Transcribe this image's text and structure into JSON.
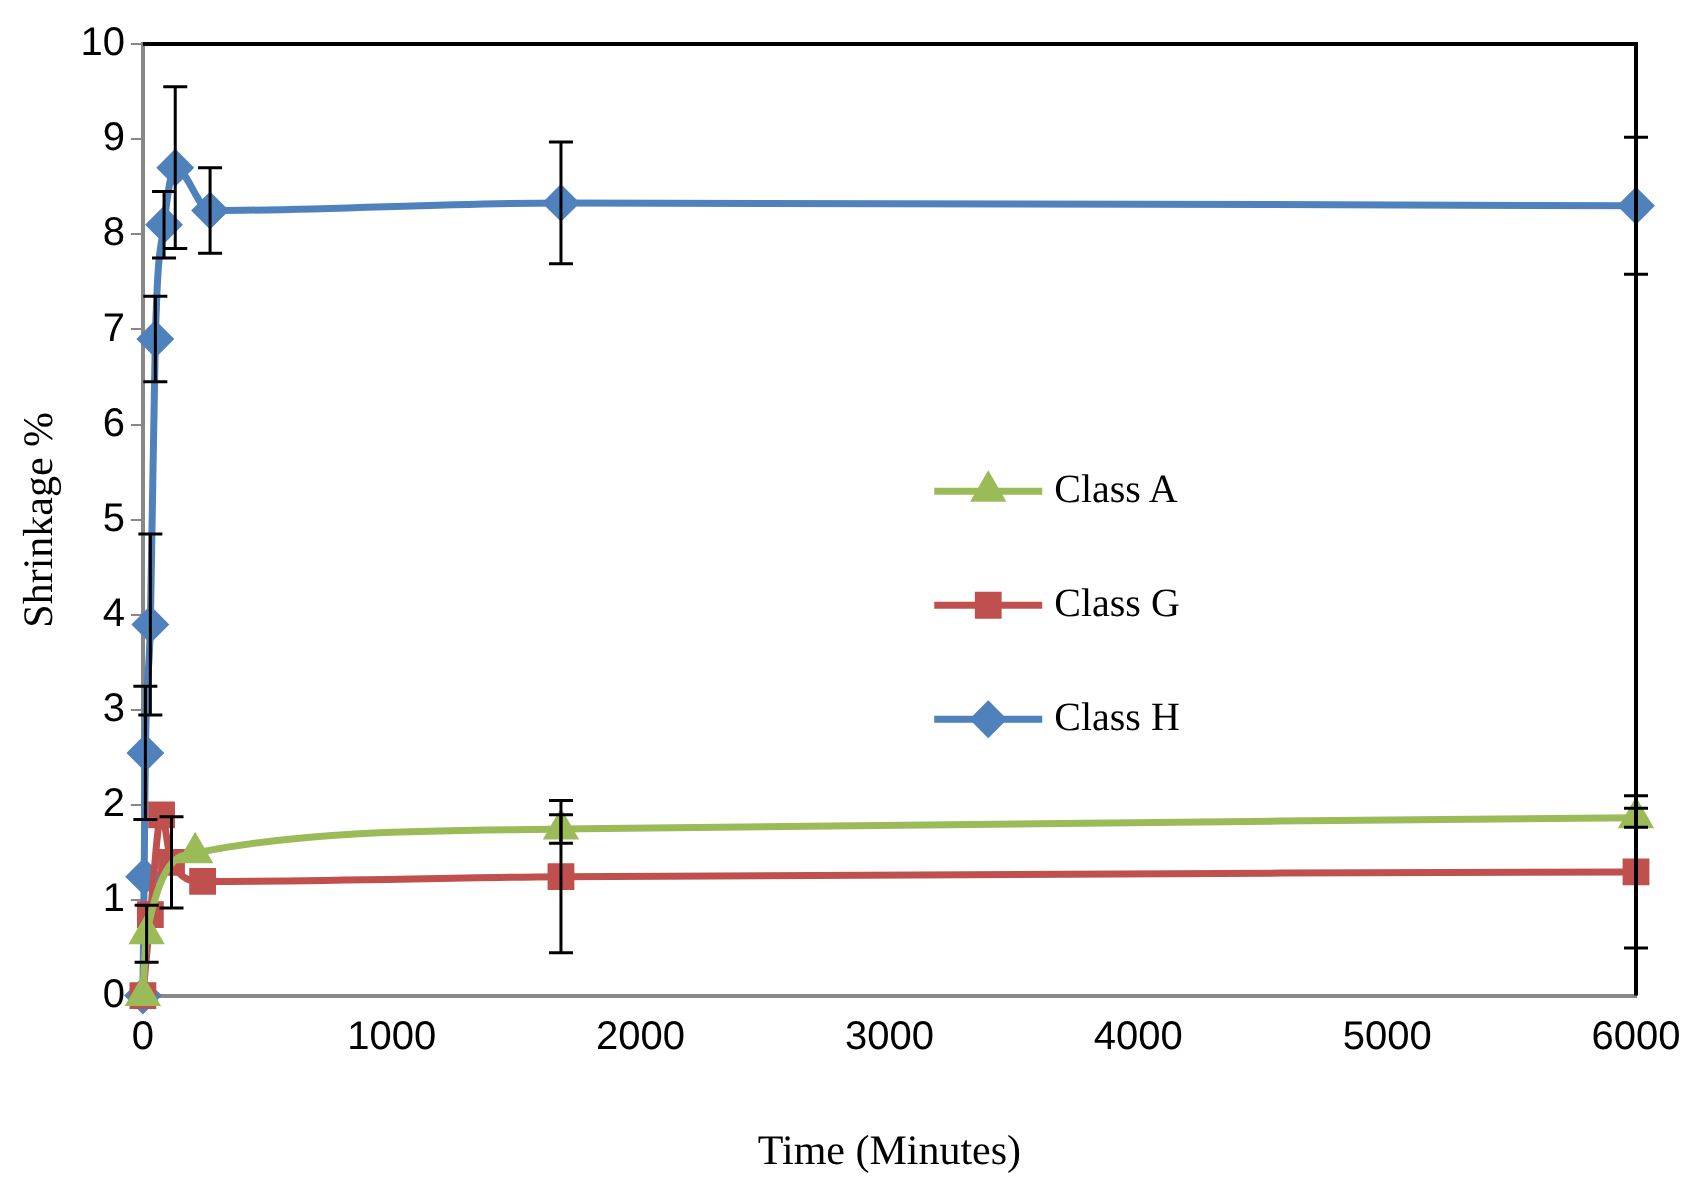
{
  "chart_data": {
    "type": "line",
    "xlabel": "Time (Minutes)",
    "ylabel": "Shrinkage %",
    "xlim": [
      0,
      6000
    ],
    "xticks": [
      0,
      1000,
      2000,
      3000,
      4000,
      5000,
      6000
    ],
    "ylim": [
      0,
      10
    ],
    "yticks": [
      0,
      1,
      2,
      3,
      4,
      5,
      6,
      7,
      8,
      9,
      10
    ],
    "grid": false,
    "legend": "right",
    "line_style": "solid",
    "series": [
      {
        "name": "Class A",
        "color": "#9bbb59",
        "marker": "triangle",
        "x": [
          0,
          15,
          210,
          1680,
          6000
        ],
        "values": [
          0,
          0.65,
          1.5,
          1.75,
          1.87
        ],
        "errors": [
          null,
          0.3,
          null,
          0.15,
          0.1
        ]
      },
      {
        "name": "Class G",
        "color": "#c0504d",
        "marker": "square",
        "x": [
          0,
          30,
          75,
          115,
          240,
          1680,
          6000
        ],
        "values": [
          0,
          0.85,
          1.9,
          1.4,
          1.2,
          1.25,
          1.3
        ],
        "errors": [
          null,
          null,
          null,
          0.48,
          null,
          0.8,
          0.8
        ]
      },
      {
        "name": "Class H",
        "color": "#4f81bd",
        "marker": "diamond",
        "x": [
          0,
          5,
          10,
          30,
          50,
          85,
          130,
          270,
          1680,
          6000
        ],
        "values": [
          0,
          1.25,
          2.55,
          3.9,
          6.9,
          8.1,
          8.7,
          8.25,
          8.33,
          8.3
        ],
        "errors": [
          null,
          null,
          0.7,
          0.95,
          0.45,
          0.35,
          0.85,
          0.45,
          0.64,
          0.72
        ]
      }
    ]
  }
}
